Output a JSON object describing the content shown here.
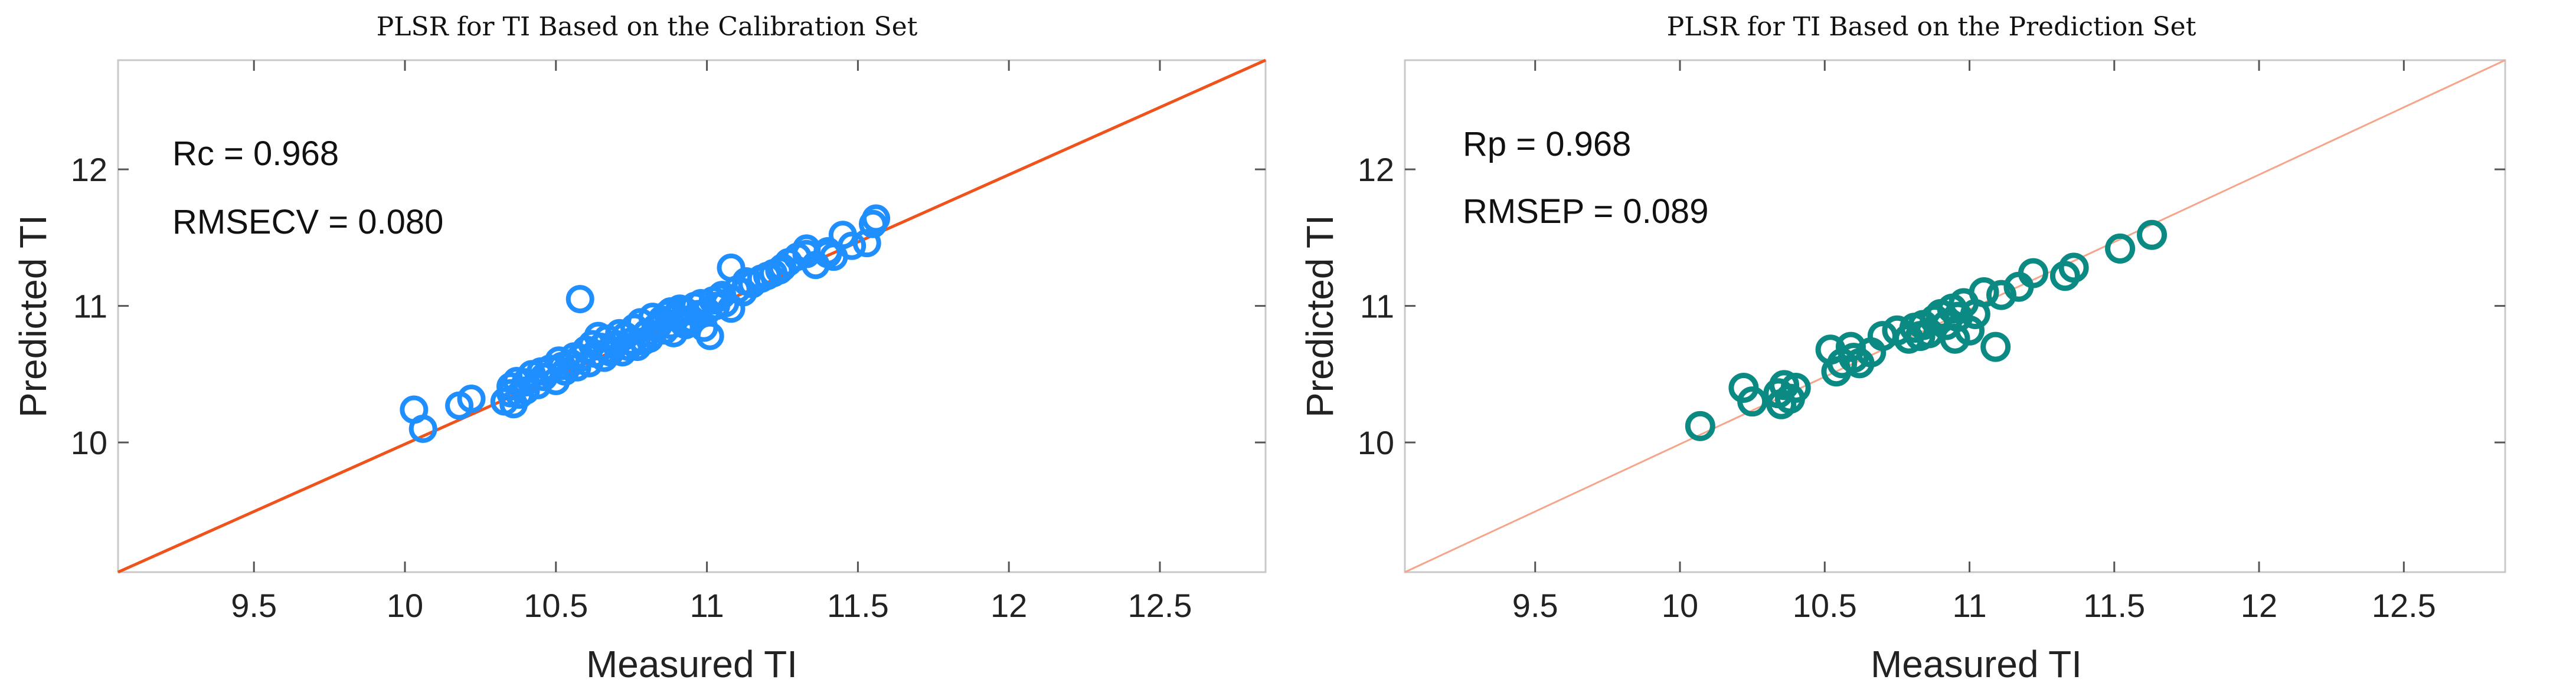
{
  "chart_data": [
    {
      "type": "scatter",
      "title": "PLSR for TI Based on the Calibration Set",
      "xlabel": "Measured TI",
      "ylabel": "Predicted TI",
      "xlim": [
        9.05,
        12.85
      ],
      "ylim": [
        9.05,
        12.8
      ],
      "xticks": [
        "9.5",
        "10",
        "10.5",
        "11",
        "11.5",
        "12",
        "12.5"
      ],
      "yticks": [
        "10",
        "11",
        "12"
      ],
      "grid": false,
      "annotations": [
        "Rc = 0.968",
        "RMSECV = 0.080"
      ],
      "marker_color": "#1f8fff",
      "line_color": "#f0521c",
      "reference_line": {
        "x": [
          9.05,
          12.85
        ],
        "y": [
          9.05,
          12.8
        ]
      },
      "series": [
        {
          "x": [
            10.03,
            10.06,
            10.18,
            10.22,
            10.33,
            10.35,
            10.36,
            10.37,
            10.38,
            10.4,
            10.42,
            10.44,
            10.46,
            10.48,
            10.5,
            10.51,
            10.53,
            10.55,
            10.56,
            10.57,
            10.58,
            10.6,
            10.61,
            10.62,
            10.63,
            10.65,
            10.66,
            10.67,
            10.68,
            10.7,
            10.71,
            10.72,
            10.73,
            10.75,
            10.76,
            10.77,
            10.78,
            10.8,
            10.81,
            10.82,
            10.83,
            10.85,
            10.86,
            10.87,
            10.88,
            10.9,
            10.91,
            10.92,
            10.93,
            10.95,
            10.96,
            10.97,
            10.98,
            11.0,
            11.01,
            11.02,
            11.03,
            11.05,
            11.06,
            11.08,
            11.1,
            11.12,
            11.15,
            11.18,
            11.2,
            11.22,
            11.25,
            11.27,
            11.3,
            11.33,
            11.36,
            11.4,
            11.42,
            11.45,
            11.48,
            11.53,
            11.55,
            11.56,
            10.58,
            11.08,
            10.45,
            10.52,
            10.68,
            10.74,
            10.79,
            10.84,
            10.89,
            10.94,
            10.99,
            11.04,
            10.88,
            10.93,
            10.64,
            10.4,
            10.35,
            11.13,
            11.24,
            11.33,
            11.4
          ],
          "y": [
            10.24,
            10.1,
            10.27,
            10.32,
            10.3,
            10.41,
            10.28,
            10.45,
            10.35,
            10.38,
            10.5,
            10.42,
            10.48,
            10.54,
            10.45,
            10.6,
            10.52,
            10.58,
            10.63,
            10.55,
            10.62,
            10.68,
            10.58,
            10.72,
            10.65,
            10.7,
            10.62,
            10.76,
            10.68,
            10.72,
            10.8,
            10.66,
            10.78,
            10.74,
            10.84,
            10.7,
            10.88,
            10.8,
            10.76,
            10.92,
            10.84,
            10.9,
            10.82,
            10.94,
            10.86,
            10.92,
            10.98,
            10.88,
            10.96,
            10.9,
            11.0,
            10.94,
            11.02,
            10.96,
            10.78,
            11.04,
            11.0,
            11.08,
            11.02,
            11.28,
            11.12,
            11.1,
            11.16,
            11.2,
            11.22,
            11.24,
            11.28,
            11.32,
            11.36,
            11.38,
            11.3,
            11.4,
            11.36,
            11.52,
            11.44,
            11.46,
            11.6,
            11.64,
            11.05,
            10.98,
            10.52,
            10.56,
            10.66,
            10.7,
            10.74,
            10.86,
            10.8,
            10.9,
            10.84,
            11.06,
            10.96,
            10.86,
            10.78,
            10.44,
            10.36,
            11.18,
            11.26,
            11.42,
            11.38
          ]
        }
      ]
    },
    {
      "type": "scatter",
      "title": "PLSR for TI Based on the Prediction Set",
      "xlabel": "Measured TI",
      "ylabel": "Predicted TI",
      "xlim": [
        9.05,
        12.85
      ],
      "ylim": [
        9.05,
        12.8
      ],
      "xticks": [
        "9.5",
        "10",
        "10.5",
        "11",
        "11.5",
        "12",
        "12.5"
      ],
      "yticks": [
        "10",
        "11",
        "12"
      ],
      "grid": false,
      "annotations": [
        "Rp = 0.968",
        "RMSEP = 0.089"
      ],
      "marker_color": "#0a8a82",
      "line_color": "#f5a58a",
      "reference_line": {
        "x": [
          9.05,
          12.85
        ],
        "y": [
          9.05,
          12.8
        ]
      },
      "series": [
        {
          "x": [
            10.07,
            10.22,
            10.25,
            10.34,
            10.35,
            10.36,
            10.38,
            10.4,
            10.52,
            10.54,
            10.56,
            10.59,
            10.6,
            10.62,
            10.66,
            10.7,
            10.75,
            10.79,
            10.81,
            10.83,
            10.84,
            10.86,
            10.88,
            10.9,
            10.92,
            10.94,
            10.95,
            10.96,
            10.98,
            11.0,
            11.02,
            11.05,
            11.09,
            11.11,
            11.17,
            11.22,
            11.33,
            11.36,
            11.52,
            11.63
          ],
          "y": [
            10.12,
            10.4,
            10.3,
            10.36,
            10.28,
            10.42,
            10.32,
            10.4,
            10.68,
            10.52,
            10.58,
            10.7,
            10.62,
            10.58,
            10.66,
            10.78,
            10.82,
            10.76,
            10.84,
            10.78,
            10.86,
            10.8,
            10.9,
            10.94,
            10.86,
            10.98,
            10.76,
            10.92,
            11.02,
            10.82,
            10.94,
            11.1,
            10.7,
            11.08,
            11.14,
            11.24,
            11.22,
            11.28,
            11.42,
            11.52
          ]
        }
      ]
    }
  ]
}
